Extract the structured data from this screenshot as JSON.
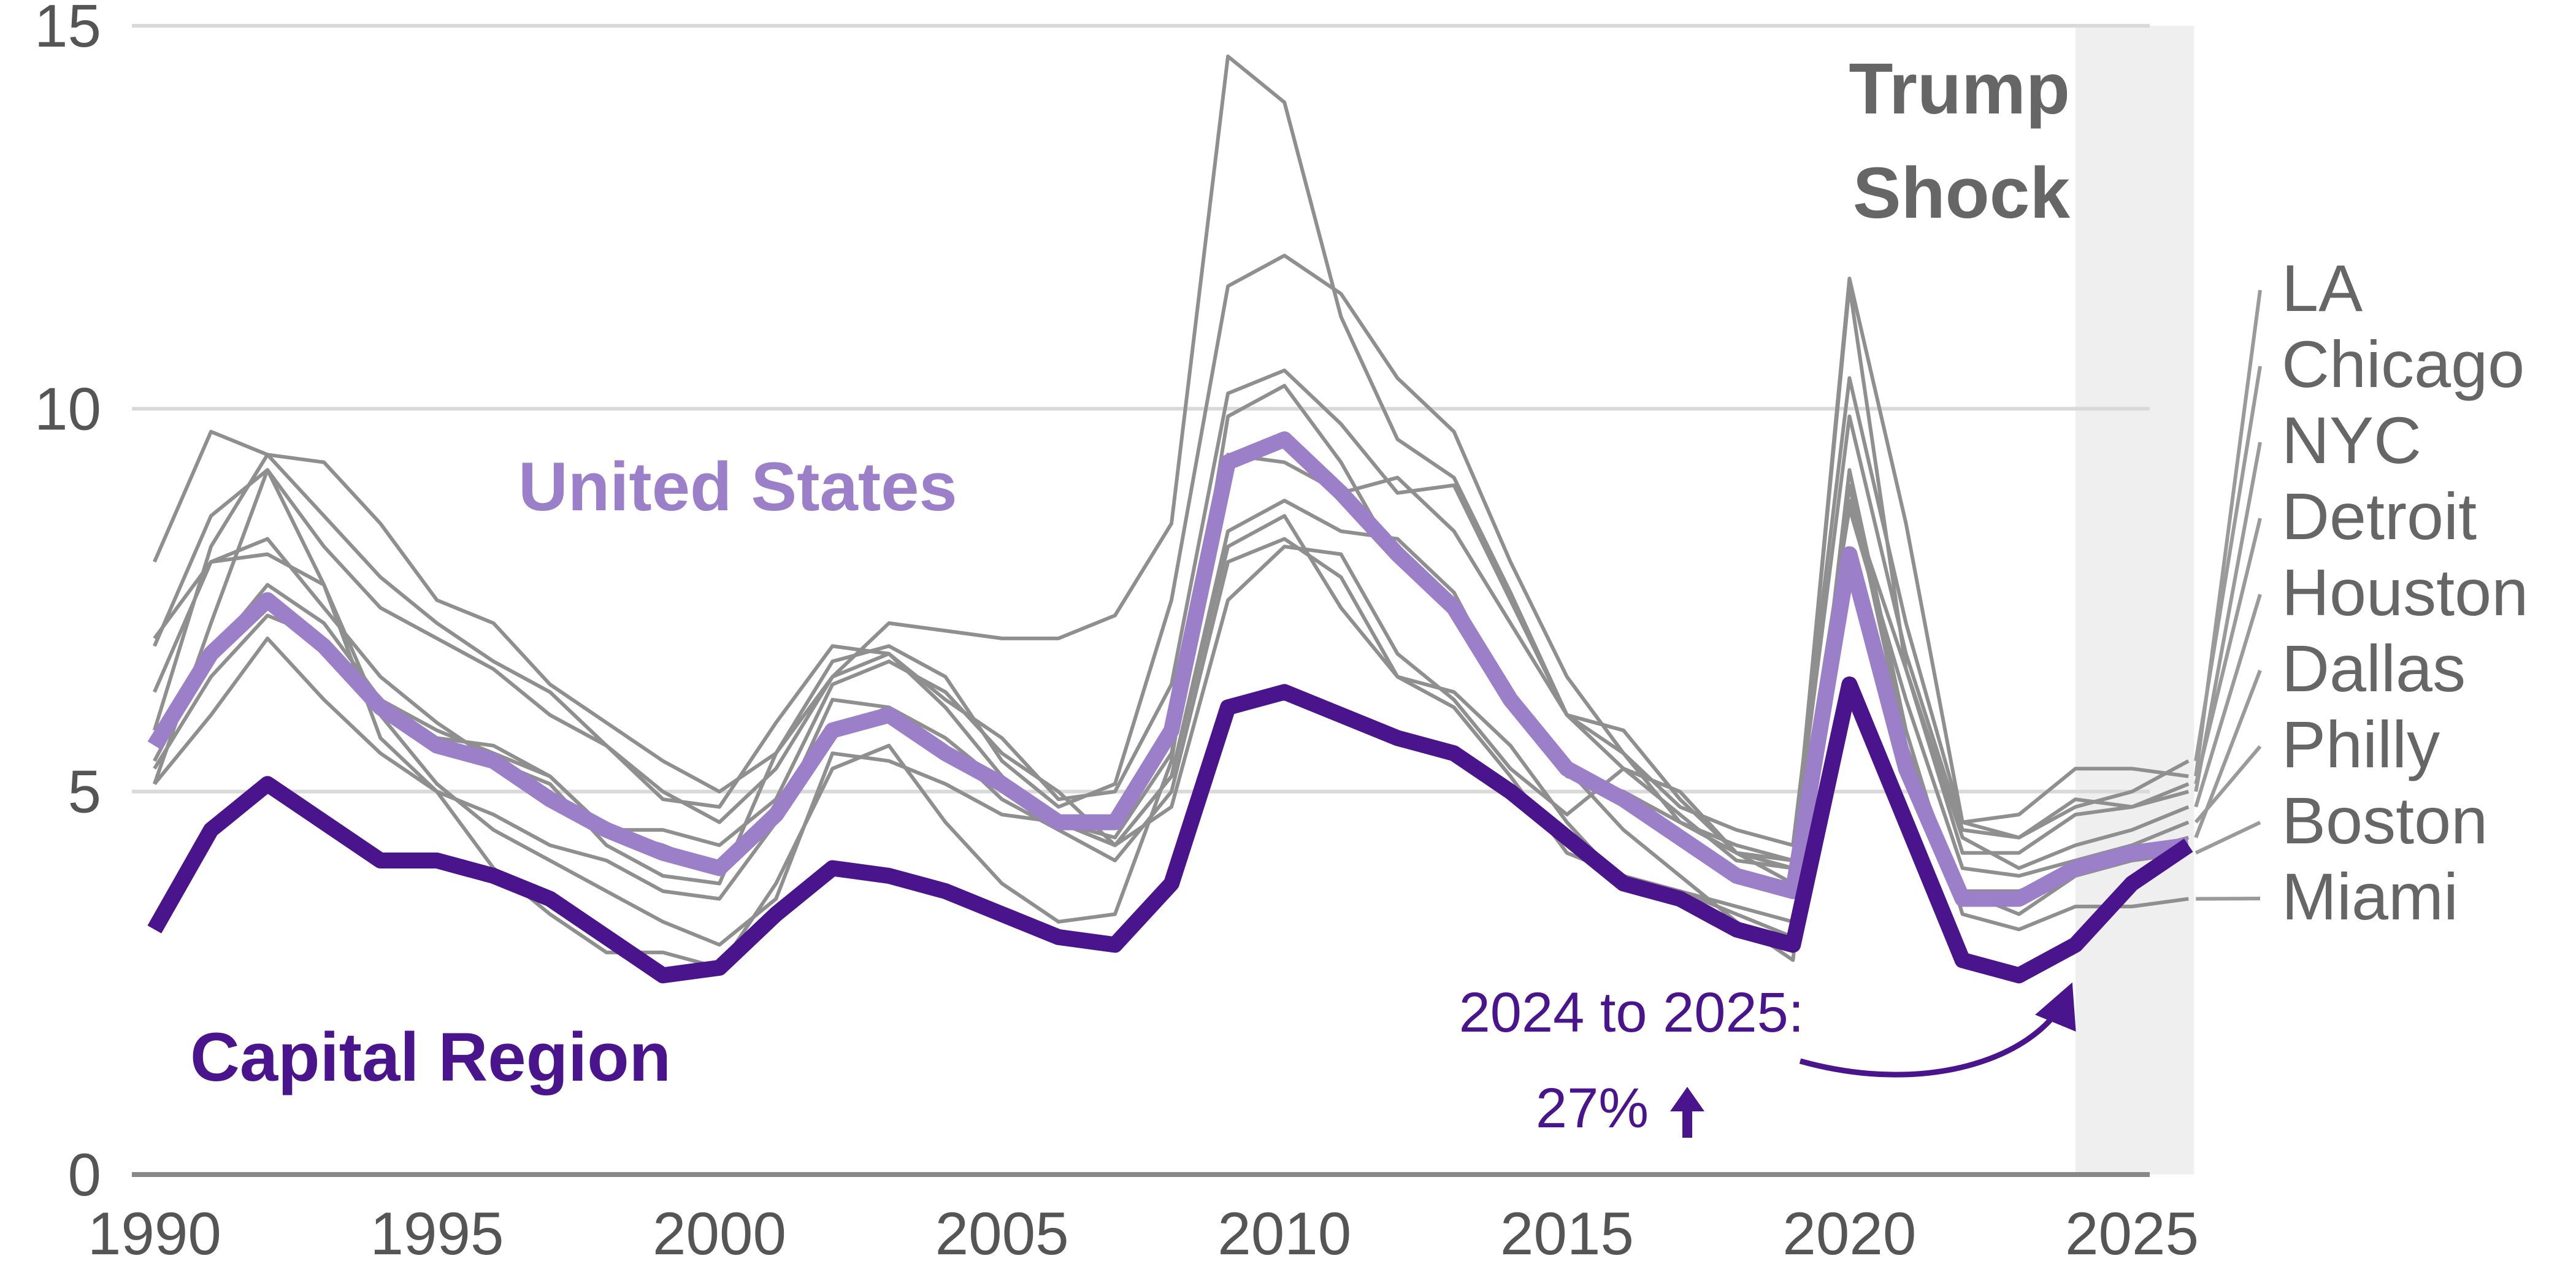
{
  "chart_data": {
    "type": "line",
    "title": "",
    "xlabel": "",
    "ylabel": "",
    "xlim": [
      1989.6,
      2026.4
    ],
    "ylim": [
      0,
      15
    ],
    "x_ticks": [
      "1990",
      "1995",
      "2000",
      "2005",
      "2010",
      "2015",
      "2020",
      "2025"
    ],
    "y_ticks": [
      "0",
      "5",
      "10",
      "15"
    ],
    "grid": "horizontal",
    "x": [
      1990,
      1991,
      1992,
      1993,
      1994,
      1995,
      1996,
      1997,
      1998,
      1999,
      2000,
      2001,
      2002,
      2003,
      2004,
      2005,
      2006,
      2007,
      2008,
      2009,
      2010,
      2011,
      2012,
      2013,
      2014,
      2015,
      2016,
      2017,
      2018,
      2019,
      2020,
      2021,
      2022,
      2023,
      2024,
      2025,
      2026
    ],
    "shaded_region": {
      "from": 2024,
      "to": 2026.1,
      "label_line1": "Trump",
      "label_line2": "Shock"
    },
    "colors": {
      "capital": "#4a148c",
      "us": "#9b7fc8",
      "city": "#8f8f8f",
      "shade": "#efefef",
      "grid": "#d9d9d9"
    },
    "series": [
      {
        "name": "United States",
        "role": "us",
        "values": [
          5.6,
          6.8,
          7.5,
          6.9,
          6.1,
          5.6,
          5.4,
          4.9,
          4.5,
          4.2,
          4.0,
          4.7,
          5.8,
          6.0,
          5.5,
          5.1,
          4.6,
          4.6,
          5.8,
          9.3,
          9.6,
          8.9,
          8.1,
          7.4,
          6.2,
          5.3,
          4.9,
          4.4,
          3.9,
          3.7,
          8.1,
          5.3,
          3.6,
          3.6,
          4.0,
          4.2,
          4.3
        ]
      },
      {
        "name": "Capital Region",
        "role": "capital",
        "values": [
          3.2,
          4.5,
          5.1,
          4.6,
          4.1,
          4.1,
          3.9,
          3.6,
          3.1,
          2.6,
          2.7,
          3.4,
          4.0,
          3.9,
          3.7,
          3.4,
          3.1,
          3.0,
          3.8,
          6.1,
          6.3,
          6.0,
          5.7,
          5.5,
          5.0,
          4.4,
          3.8,
          3.6,
          3.2,
          3.0,
          6.4,
          4.6,
          2.8,
          2.6,
          3.0,
          3.8,
          4.3
        ]
      },
      {
        "name": "LA",
        "role": "city",
        "values": [
          5.8,
          8.2,
          9.4,
          9.3,
          8.5,
          7.5,
          7.2,
          6.4,
          5.9,
          5.4,
          5.0,
          5.5,
          6.7,
          6.9,
          6.5,
          5.4,
          4.8,
          5.1,
          7.5,
          11.6,
          12.0,
          11.5,
          10.4,
          9.7,
          8.0,
          6.5,
          5.5,
          4.8,
          4.5,
          4.3,
          10.4,
          7.2,
          4.6,
          4.7,
          5.3,
          5.3,
          5.2
        ]
      },
      {
        "name": "Chicago",
        "role": "city",
        "values": [
          6.9,
          8.6,
          9.2,
          8.2,
          7.4,
          7.0,
          6.6,
          6.0,
          5.6,
          4.9,
          4.8,
          5.9,
          6.9,
          6.8,
          6.2,
          5.7,
          4.9,
          5.0,
          6.4,
          10.2,
          10.5,
          9.8,
          8.9,
          9.0,
          7.5,
          6.0,
          5.8,
          4.9,
          4.2,
          4.1,
          9.9,
          6.8,
          4.5,
          4.4,
          4.8,
          5.0,
          5.4
        ]
      },
      {
        "name": "NYC",
        "role": "city",
        "values": [
          8.0,
          9.7,
          9.4,
          8.6,
          7.8,
          7.2,
          6.7,
          6.3,
          5.6,
          5.0,
          4.6,
          5.3,
          6.5,
          6.8,
          6.1,
          5.2,
          4.6,
          4.4,
          5.5,
          9.4,
          9.3,
          8.9,
          9.1,
          8.4,
          7.2,
          6.0,
          5.3,
          4.7,
          4.1,
          4.0,
          11.7,
          8.5,
          4.6,
          4.4,
          4.9,
          4.8,
          5.0
        ]
      },
      {
        "name": "Detroit",
        "role": "city",
        "values": [
          7.0,
          8.0,
          8.3,
          7.4,
          6.5,
          5.9,
          5.4,
          5.1,
          4.3,
          3.9,
          3.8,
          5.5,
          6.5,
          7.2,
          7.1,
          7.0,
          7.0,
          7.3,
          8.5,
          14.6,
          14.0,
          11.2,
          9.6,
          9.1,
          7.6,
          6.0,
          5.5,
          4.6,
          4.2,
          4.0,
          11.6,
          6.6,
          4.2,
          4.2,
          4.7,
          4.8,
          5.1
        ]
      },
      {
        "name": "Houston",
        "role": "city",
        "values": [
          5.3,
          6.5,
          7.3,
          7.0,
          6.2,
          5.7,
          5.6,
          5.2,
          4.5,
          4.5,
          4.3,
          4.9,
          6.4,
          6.7,
          6.3,
          5.5,
          5.0,
          4.3,
          4.8,
          7.5,
          8.2,
          8.1,
          6.8,
          6.2,
          5.3,
          4.7,
          5.3,
          5.0,
          4.2,
          3.8,
          8.8,
          6.6,
          4.4,
          4.0,
          4.3,
          4.5,
          4.8
        ]
      },
      {
        "name": "Dallas",
        "role": "city",
        "values": [
          5.1,
          6.0,
          7.0,
          6.2,
          5.5,
          5.0,
          4.7,
          4.3,
          4.1,
          3.7,
          3.6,
          4.6,
          6.2,
          6.1,
          5.6,
          4.9,
          4.5,
          4.1,
          5.0,
          8.0,
          8.3,
          7.8,
          6.5,
          6.1,
          5.2,
          4.2,
          3.9,
          3.7,
          3.5,
          3.3,
          7.8,
          5.4,
          3.7,
          3.7,
          4.0,
          4.2,
          4.4
        ]
      },
      {
        "name": "Philly",
        "role": "city",
        "values": [
          5.4,
          6.8,
          7.7,
          7.2,
          6.2,
          5.8,
          5.5,
          5.2,
          4.5,
          4.3,
          4.0,
          4.8,
          5.8,
          6.1,
          5.7,
          5.1,
          4.6,
          4.3,
          5.2,
          8.4,
          8.8,
          8.4,
          8.3,
          7.6,
          6.2,
          5.2,
          5.0,
          4.6,
          4.3,
          4.1,
          8.7,
          6.2,
          4.0,
          3.9,
          4.1,
          4.3,
          4.6
        ]
      },
      {
        "name": "Boston",
        "role": "city",
        "values": [
          6.3,
          8.0,
          8.1,
          7.7,
          6.0,
          5.1,
          4.5,
          4.1,
          3.7,
          3.3,
          3.0,
          3.6,
          5.5,
          5.4,
          5.1,
          4.7,
          4.6,
          4.3,
          5.2,
          8.2,
          8.6,
          7.4,
          6.5,
          6.3,
          5.6,
          4.6,
          3.8,
          3.7,
          3.4,
          3.1,
          9.0,
          5.6,
          3.7,
          3.4,
          3.9,
          4.1,
          4.2
        ]
      },
      {
        "name": "Miami",
        "role": "city",
        "values": [
          5.1,
          7.2,
          9.2,
          7.7,
          5.7,
          5.0,
          4.0,
          3.4,
          2.9,
          2.9,
          2.7,
          3.8,
          5.3,
          5.6,
          4.6,
          3.8,
          3.3,
          3.4,
          5.4,
          9.9,
          10.3,
          9.3,
          8.0,
          7.3,
          6.2,
          5.3,
          4.5,
          3.9,
          3.3,
          2.8,
          9.2,
          5.8,
          3.4,
          3.2,
          3.5,
          3.5,
          3.6
        ]
      }
    ],
    "labels": {
      "us": "United States",
      "capital": "Capital Region",
      "annotation_line1": "2024 to 2025:",
      "annotation_line2": "27%"
    }
  }
}
